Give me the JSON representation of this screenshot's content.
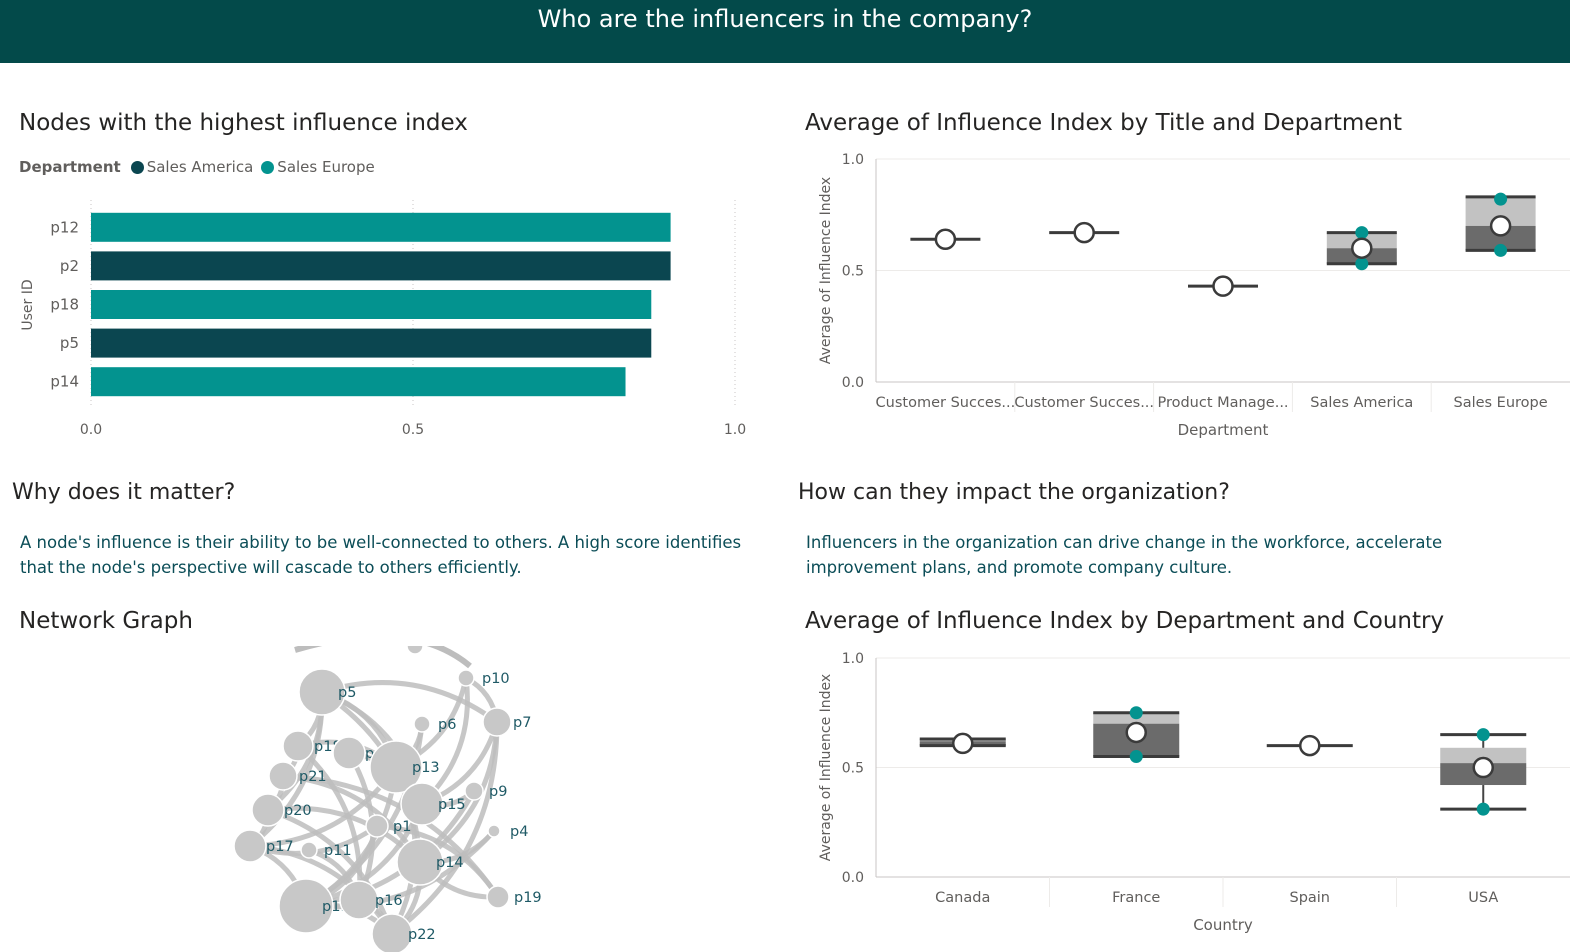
{
  "banner": {
    "title": "Who are the influencers in the company?"
  },
  "colors": {
    "banner": "#034a4a",
    "sales_america": "#0b4650",
    "sales_europe": "#03938f",
    "box_dark": "#6b6b6b",
    "box_light": "#c2c2c2",
    "network_node": "#c8c8c8",
    "network_label": "#1f5a66"
  },
  "bar_panel": {
    "title": "Nodes with the highest influence index",
    "legend": {
      "title": "Department",
      "items": [
        {
          "label": "Sales America",
          "color": "#0b4650"
        },
        {
          "label": "Sales Europe",
          "color": "#03938f"
        }
      ]
    }
  },
  "why": {
    "title": "Why does it matter?",
    "text": "A node's influence is their ability to be well-connected to others. A high score identifies that the node's perspective will cascade to others efficiently."
  },
  "how": {
    "title": "How can they impact the organization?",
    "text": "Influencers in the organization can drive change in the workforce, accelerate improvement plans, and promote company culture."
  },
  "network": {
    "title": "Network Graph",
    "nodes": [
      {
        "label": "p5"
      },
      {
        "label": "p10"
      },
      {
        "label": "p6"
      },
      {
        "label": "p7"
      },
      {
        "label": "p18"
      },
      {
        "label": "p"
      },
      {
        "label": "p13"
      },
      {
        "label": "p21"
      },
      {
        "label": "p9"
      },
      {
        "label": "p20"
      },
      {
        "label": "p15"
      },
      {
        "label": "p1"
      },
      {
        "label": "p4"
      },
      {
        "label": "p17"
      },
      {
        "label": "p11"
      },
      {
        "label": "p14"
      },
      {
        "label": "p1."
      },
      {
        "label": "p16"
      },
      {
        "label": "p19"
      },
      {
        "label": "p22"
      }
    ]
  },
  "chart_data": [
    {
      "type": "bar",
      "orientation": "horizontal",
      "title": "Nodes with the highest influence index",
      "ylabel": "User ID",
      "xlabel": "",
      "categories": [
        "p12",
        "p2",
        "p18",
        "p5",
        "p14"
      ],
      "values": [
        0.9,
        0.9,
        0.87,
        0.87,
        0.83
      ],
      "department": [
        "Sales Europe",
        "Sales America",
        "Sales Europe",
        "Sales America",
        "Sales Europe"
      ],
      "xlim": [
        0,
        1
      ],
      "xticks": [
        "0.0",
        "0.5",
        "1.0"
      ]
    },
    {
      "type": "box",
      "title": "Average of Influence Index by Title and Department",
      "xlabel": "Department",
      "ylabel": "Average of Influence Index",
      "ylim": [
        0,
        1
      ],
      "yticks": [
        "0.0",
        "0.5",
        "1.0"
      ],
      "categories": [
        "Customer Succes...",
        "Customer Succes...",
        "Product Manage...",
        "Sales America",
        "Sales Europe"
      ],
      "boxes": [
        {
          "min": 0.64,
          "q1": 0.64,
          "median": 0.64,
          "q3": 0.64,
          "max": 0.64,
          "mean": 0.64,
          "points": []
        },
        {
          "min": 0.67,
          "q1": 0.67,
          "median": 0.67,
          "q3": 0.67,
          "max": 0.67,
          "mean": 0.67,
          "points": []
        },
        {
          "min": 0.43,
          "q1": 0.43,
          "median": 0.43,
          "q3": 0.43,
          "max": 0.43,
          "mean": 0.43,
          "points": []
        },
        {
          "min": 0.53,
          "q1": 0.53,
          "median": 0.6,
          "q3": 0.67,
          "max": 0.67,
          "mean": 0.6,
          "points": [
            0.53,
            0.67
          ]
        },
        {
          "min": 0.59,
          "q1": 0.59,
          "median": 0.7,
          "q3": 0.83,
          "max": 0.83,
          "mean": 0.7,
          "points": [
            0.59,
            0.82
          ]
        }
      ]
    },
    {
      "type": "box",
      "title": "Average of Influence Index by Department and Country",
      "xlabel": "Country",
      "ylabel": "Average of Influence Index",
      "ylim": [
        0,
        1
      ],
      "yticks": [
        "0.0",
        "0.5",
        "1.0"
      ],
      "categories": [
        "Canada",
        "France",
        "Spain",
        "USA"
      ],
      "boxes": [
        {
          "min": 0.6,
          "q1": 0.6,
          "median": 0.62,
          "q3": 0.63,
          "max": 0.63,
          "mean": 0.61,
          "points": []
        },
        {
          "min": 0.55,
          "q1": 0.55,
          "median": 0.7,
          "q3": 0.75,
          "max": 0.75,
          "mean": 0.66,
          "points": [
            0.55,
            0.75
          ]
        },
        {
          "min": 0.6,
          "q1": 0.6,
          "median": 0.6,
          "q3": 0.6,
          "max": 0.6,
          "mean": 0.6,
          "points": []
        },
        {
          "min": 0.31,
          "q1": 0.42,
          "median": 0.52,
          "q3": 0.59,
          "max": 0.65,
          "mean": 0.5,
          "points": [
            0.31,
            0.65
          ]
        }
      ]
    }
  ]
}
